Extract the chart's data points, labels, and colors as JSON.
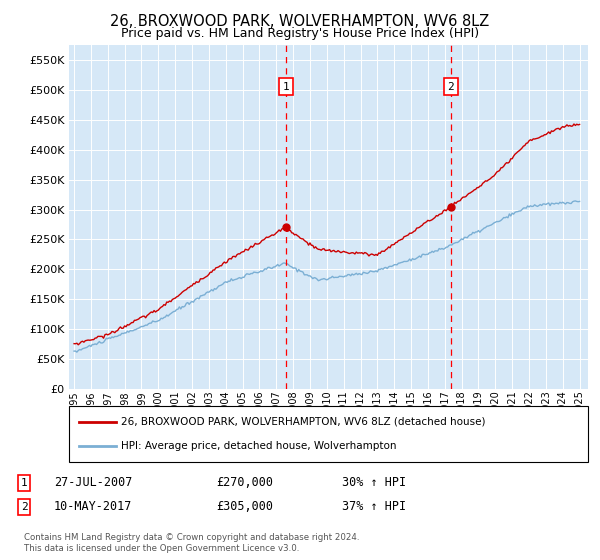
{
  "title": "26, BROXWOOD PARK, WOLVERHAMPTON, WV6 8LZ",
  "subtitle": "Price paid vs. HM Land Registry's House Price Index (HPI)",
  "ylim": [
    0,
    575000
  ],
  "ytick_values": [
    0,
    50000,
    100000,
    150000,
    200000,
    250000,
    300000,
    350000,
    400000,
    450000,
    500000,
    550000
  ],
  "xlim_start": 1994.7,
  "xlim_end": 2025.5,
  "bg_color": "#d6e8f7",
  "red_line_color": "#cc0000",
  "blue_line_color": "#7bafd4",
  "sale1_x": 2007.57,
  "sale1_y": 270000,
  "sale2_x": 2017.36,
  "sale2_y": 305000,
  "legend_label_red": "26, BROXWOOD PARK, WOLVERHAMPTON, WV6 8LZ (detached house)",
  "legend_label_blue": "HPI: Average price, detached house, Wolverhampton",
  "annotation1_date": "27-JUL-2007",
  "annotation1_price": "£270,000",
  "annotation1_pct": "30% ↑ HPI",
  "annotation2_date": "10-MAY-2017",
  "annotation2_price": "£305,000",
  "annotation2_pct": "37% ↑ HPI",
  "footer": "Contains HM Land Registry data © Crown copyright and database right 2024.\nThis data is licensed under the Open Government Licence v3.0."
}
